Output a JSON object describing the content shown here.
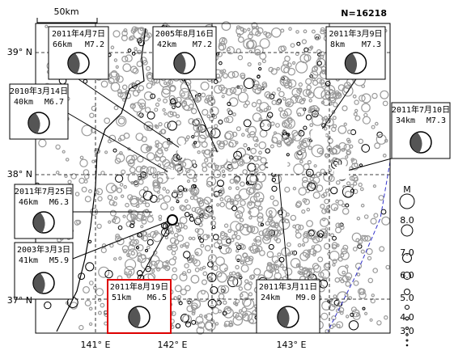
{
  "header": {
    "scale": "50km",
    "count": "N=16218"
  },
  "axes": {
    "lat": [
      "39° N",
      "38° N",
      "37° N"
    ],
    "lon": [
      "141° E",
      "142° E",
      "143° E"
    ]
  },
  "legend": {
    "title": "M",
    "labels": [
      "8.0",
      "7.0",
      "6.0",
      "5.0",
      "4.0",
      "3.0"
    ]
  },
  "events": [
    {
      "date": "2011年4月7日",
      "depth": "66km",
      "magnitude": "M7.2"
    },
    {
      "date": "2005年8月16日",
      "depth": "42km",
      "magnitude": "M7.2"
    },
    {
      "date": "2011年3月9日",
      "depth": "8km",
      "magnitude": "M7.3"
    },
    {
      "date": "2010年3月14日",
      "depth": "40km",
      "magnitude": "M6.7"
    },
    {
      "date": "2011年7月10日",
      "depth": "34km",
      "magnitude": "M7.3"
    },
    {
      "date": "2011年7月25日",
      "depth": "46km",
      "magnitude": "M6.3"
    },
    {
      "date": "2003年3月3日",
      "depth": "41km",
      "magnitude": "M5.9"
    },
    {
      "date": "2011年8月19日",
      "depth": "51km",
      "magnitude": "M6.5"
    },
    {
      "date": "2011年3月11日",
      "depth": "24km",
      "magnitude": "M9.0"
    }
  ]
}
